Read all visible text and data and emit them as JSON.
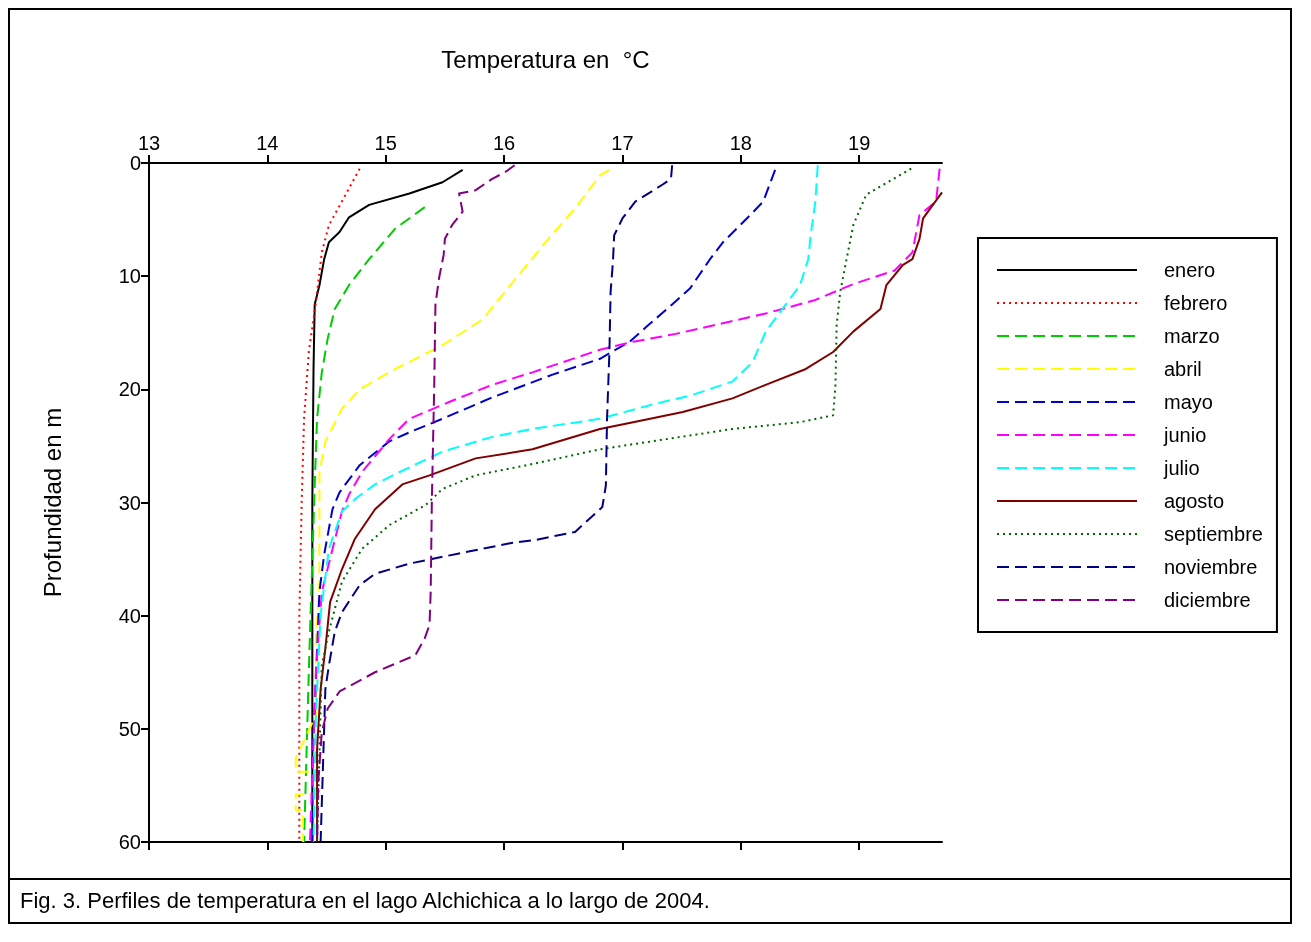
{
  "chart_data": {
    "type": "line",
    "xlabel": "Temperatura en  °C",
    "ylabel": "Profundidad en m",
    "xlim": [
      13,
      19.7
    ],
    "xticks": [
      13,
      14,
      15,
      16,
      17,
      18,
      19
    ],
    "ylim": [
      60,
      0
    ],
    "yticks": [
      0,
      10,
      20,
      30,
      40,
      50,
      60
    ],
    "grid": false,
    "legend": "right",
    "annotations": [
      "Fig. 3. Perfiles de temperatura en el lago Alchichica a lo largo de 2004."
    ],
    "series": [
      {
        "name": "enero",
        "color": "#000000",
        "line_style": "solid",
        "x": [
          15.65,
          15.48,
          15.2,
          14.86,
          14.69,
          14.61,
          14.52,
          14.48,
          14.44,
          14.4,
          14.39,
          14.38,
          14.38,
          14.38
        ],
        "values": [
          0.6,
          1.7,
          2.7,
          3.7,
          4.8,
          6.1,
          7,
          8.5,
          10.8,
          12.5,
          18.2,
          30,
          48.5,
          60
        ]
      },
      {
        "name": "febrero",
        "color": "#ff0000",
        "line_style": "dotted",
        "x": [
          14.78,
          14.63,
          14.52,
          14.46,
          14.41,
          14.35,
          14.31,
          14.29,
          14.27,
          14.27
        ],
        "values": [
          0.5,
          3.4,
          5.5,
          7.9,
          12.3,
          16.7,
          22.6,
          30,
          40,
          60
        ]
      },
      {
        "name": "marzo",
        "color": "#00cc00",
        "line_style": "dashed",
        "x": [
          15.33,
          15.08,
          14.86,
          14.69,
          14.57,
          14.51,
          14.46,
          14.42,
          14.4,
          14.38,
          14.35,
          14.31
        ],
        "values": [
          3.9,
          5.8,
          8.5,
          10.8,
          12.9,
          15.5,
          18.5,
          22.6,
          28.5,
          35,
          45,
          60
        ]
      },
      {
        "name": "abril",
        "color": "#ffff00",
        "line_style": "dashed",
        "x": [
          16.89,
          16.81,
          16.6,
          16.35,
          16.1,
          15.82,
          15.48,
          15.08,
          14.78,
          14.63,
          14.49,
          14.44,
          14.44,
          14.44,
          14.41,
          14.41,
          14.24,
          14.24,
          14.41,
          14.41,
          14.24,
          14.24,
          14.3,
          14.3
        ],
        "values": [
          0.6,
          1.1,
          4,
          7,
          10.2,
          13.8,
          16.1,
          18.2,
          20,
          21.7,
          24.6,
          27.3,
          30,
          37,
          42,
          48.8,
          52.6,
          53.8,
          53.8,
          55.8,
          55.8,
          57.2,
          57.2,
          60
        ]
      },
      {
        "name": "mayo",
        "color": "#0000cc",
        "line_style": "dashed",
        "x": [
          18.29,
          18.19,
          18.08,
          17.85,
          17.74,
          17.57,
          17.42,
          17.2,
          17.06,
          16.81,
          16.41,
          15.88,
          15.48,
          15.2,
          15.03,
          14.78,
          14.61,
          14.55,
          14.48,
          14.44,
          14.41,
          14.38,
          14.38
        ],
        "values": [
          0.6,
          3.4,
          4.6,
          7,
          8.5,
          11.1,
          12.5,
          14.5,
          15.8,
          17.3,
          18.7,
          20.8,
          22.6,
          23.8,
          24.6,
          26.7,
          29.1,
          30.6,
          34.6,
          37.9,
          45.8,
          53.2,
          60
        ]
      },
      {
        "name": "junio",
        "color": "#ff00ff",
        "line_style": "dashed",
        "x": [
          19.68,
          19.65,
          19.51,
          19.45,
          19.3,
          18.95,
          18.63,
          18.21,
          17.79,
          17.45,
          17.09,
          16.81,
          16.24,
          15.9,
          15.54,
          15.2,
          15.03,
          14.8,
          14.69,
          14.63,
          14.46,
          14.41,
          14.36
        ],
        "values": [
          0.5,
          3.4,
          4.6,
          7.9,
          9.5,
          10.7,
          12.1,
          13.3,
          14.3,
          15.1,
          15.8,
          16.5,
          18.5,
          19.6,
          21.1,
          22.6,
          24.4,
          27.3,
          29.3,
          30.8,
          37.9,
          45,
          60
        ]
      },
      {
        "name": "julio",
        "color": "#00ffff",
        "line_style": "dashed",
        "x": [
          18.65,
          18.63,
          18.59,
          18.57,
          18.5,
          18.38,
          18.21,
          18.1,
          17.93,
          17.59,
          17.23,
          16.81,
          16.24,
          15.9,
          15.48,
          15.08,
          14.91,
          14.74,
          14.63,
          14.52,
          14.45,
          14.41,
          14.39
        ],
        "values": [
          0.2,
          3.4,
          6.4,
          8.5,
          10.8,
          12.5,
          14.9,
          17.6,
          19.3,
          20.5,
          21.4,
          22.6,
          23.5,
          24.2,
          25.5,
          27.5,
          28.4,
          29.7,
          30.8,
          34.1,
          39.9,
          48.8,
          60
        ]
      },
      {
        "name": "agosto",
        "color": "#800000",
        "line_style": "solid",
        "x": [
          19.7,
          19.54,
          19.51,
          19.45,
          19.37,
          19.23,
          19.18,
          18.95,
          18.78,
          18.55,
          18.21,
          17.93,
          17.51,
          17.09,
          16.81,
          16.24,
          15.76,
          15.37,
          15.14,
          14.91,
          14.74,
          14.63,
          14.53,
          14.49,
          14.45,
          14.42,
          14.42
        ],
        "values": [
          2.6,
          4.9,
          6.7,
          8.5,
          9,
          10.8,
          12.9,
          14.9,
          16.7,
          18.2,
          19.6,
          20.8,
          22,
          22.9,
          23.5,
          25.3,
          26.1,
          27.6,
          28.4,
          30.6,
          33.2,
          35.9,
          38.8,
          42.9,
          46.5,
          51.8,
          60
        ]
      },
      {
        "name": "septiembre",
        "color": "#006600",
        "line_style": "dotted",
        "x": [
          19.44,
          19.06,
          18.95,
          18.89,
          18.84,
          18.81,
          18.8,
          18.78,
          18.5,
          17.93,
          17.37,
          16.81,
          16.24,
          15.76,
          15.48,
          15.34,
          15.03,
          14.8,
          14.63,
          14.52,
          14.46,
          14.42
        ],
        "values": [
          0.5,
          2.8,
          5.5,
          8.7,
          11.4,
          14.3,
          19.6,
          22.3,
          22.9,
          23.5,
          24.4,
          25.3,
          26.6,
          27.6,
          28.8,
          30.2,
          32,
          34.1,
          37,
          41.4,
          44.4,
          60
        ]
      },
      {
        "name": "noviembre",
        "color": "#000080",
        "line_style": "dashed",
        "x": [
          17.42,
          17.41,
          17.34,
          17.11,
          17,
          16.93,
          16.92,
          16.9,
          16.89,
          16.87,
          16.86,
          16.83,
          16.6,
          16.27,
          16.05,
          15.62,
          15.2,
          14.91,
          14.78,
          14.63,
          14.57,
          14.52,
          14.49,
          14.45
        ],
        "values": [
          0.2,
          1.4,
          1.9,
          3.4,
          4.9,
          6.4,
          8.7,
          11.4,
          16.7,
          22.6,
          28.5,
          30.4,
          32.6,
          33.3,
          33.6,
          34.5,
          35.4,
          36.3,
          37.3,
          39.7,
          41.4,
          44.4,
          46.5,
          60
        ]
      },
      {
        "name": "diciembre",
        "color": "#800080",
        "line_style": "dashed",
        "x": [
          16.09,
          16.01,
          15.9,
          15.76,
          15.62,
          15.65,
          15.56,
          15.5,
          15.49,
          15.45,
          15.42,
          15.41,
          15.39,
          15.38,
          15.37,
          15.33,
          15.25,
          14.91,
          14.61,
          14.51,
          14.46,
          14.43,
          14.42
        ],
        "values": [
          0.2,
          0.8,
          1.4,
          2.4,
          2.7,
          4.3,
          5.5,
          6.7,
          8.1,
          10.2,
          12.5,
          19.6,
          29.7,
          37.9,
          40.8,
          42,
          43.5,
          45,
          46.7,
          48.2,
          50.3,
          54.7,
          60
        ]
      }
    ]
  }
}
